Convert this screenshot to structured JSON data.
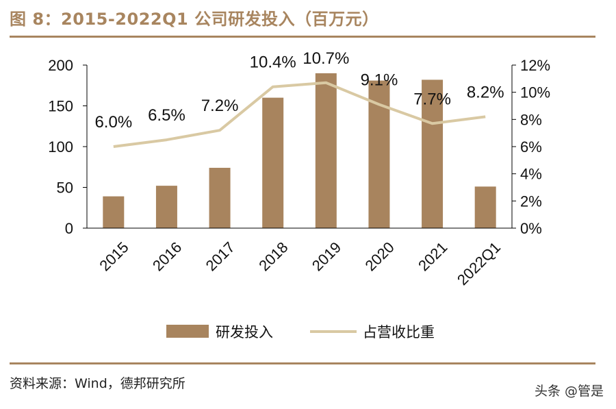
{
  "title": "图 8：2015-2022Q1 公司研发投入（百万元）",
  "source": "资料来源：Wind，德邦研究所",
  "watermark": "头条 @管是",
  "colors": {
    "accent": "#a8855f",
    "bar": "#a8845e",
    "line": "#d9c9a3",
    "axis": "#000000"
  },
  "chart_data": {
    "type": "bar",
    "categories": [
      "2015",
      "2016",
      "2017",
      "2018",
      "2019",
      "2020",
      "2021",
      "2022Q1"
    ],
    "series": [
      {
        "name": "研发投入",
        "type": "bar",
        "axis": "left",
        "values": [
          39,
          52,
          74,
          160,
          190,
          181,
          182,
          51
        ]
      },
      {
        "name": "占营收比重",
        "type": "line",
        "axis": "right",
        "values": [
          6.0,
          6.5,
          7.2,
          10.4,
          10.7,
          9.1,
          7.7,
          8.2
        ],
        "labels": [
          "6.0%",
          "6.5%",
          "7.2%",
          "10.4%",
          "10.7%",
          "9.1%",
          "7.7%",
          "8.2%"
        ]
      }
    ],
    "ylim_left": [
      0,
      200
    ],
    "yticks_left": [
      "0",
      "50",
      "100",
      "150",
      "200"
    ],
    "ylim_right": [
      0,
      12
    ],
    "yticks_right": [
      "0%",
      "2%",
      "4%",
      "6%",
      "8%",
      "10%",
      "12%"
    ],
    "grid": false,
    "legend": "bottom"
  }
}
